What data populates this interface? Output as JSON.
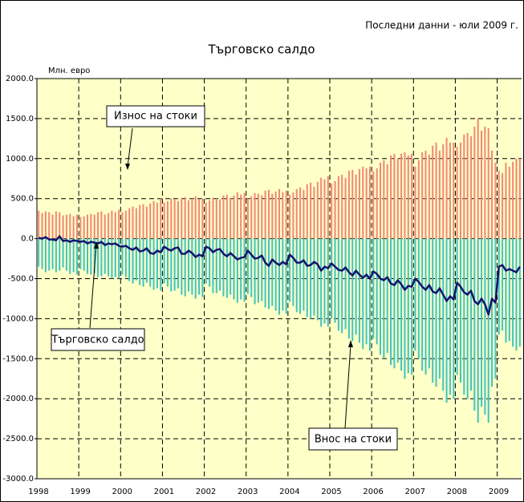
{
  "chart_data": {
    "type": "bar",
    "title": "Търговско салдо",
    "subtitle": "Последни данни - юли 2009 г.",
    "ylabel": "Млн. евро",
    "categories": [
      "1998",
      null,
      null,
      null,
      null,
      null,
      null,
      null,
      null,
      null,
      null,
      null,
      "1999",
      null,
      null,
      null,
      null,
      null,
      null,
      null,
      null,
      null,
      null,
      null,
      "2000",
      null,
      null,
      null,
      null,
      null,
      null,
      null,
      null,
      null,
      null,
      null,
      "2001",
      null,
      null,
      null,
      null,
      null,
      null,
      null,
      null,
      null,
      null,
      null,
      "2002",
      null,
      null,
      null,
      null,
      null,
      null,
      null,
      null,
      null,
      null,
      null,
      "2003",
      null,
      null,
      null,
      null,
      null,
      null,
      null,
      null,
      null,
      null,
      null,
      "2004",
      null,
      null,
      null,
      null,
      null,
      null,
      null,
      null,
      null,
      null,
      null,
      "2005",
      null,
      null,
      null,
      null,
      null,
      null,
      null,
      null,
      null,
      null,
      null,
      "2006",
      null,
      null,
      null,
      null,
      null,
      null,
      null,
      null,
      null,
      null,
      null,
      "2007",
      null,
      null,
      null,
      null,
      null,
      null,
      null,
      null,
      null,
      null,
      null,
      "2008",
      null,
      null,
      null,
      null,
      null,
      null,
      null,
      null,
      null,
      null,
      null,
      "2009",
      null,
      null,
      null,
      null,
      null,
      null
    ],
    "series": [
      {
        "name": "Износ на стоки",
        "type": "bar",
        "color": "#f08878",
        "values": [
          350,
          320,
          340,
          330,
          300,
          340,
          330,
          290,
          300,
          310,
          280,
          300,
          270,
          280,
          300,
          310,
          300,
          330,
          340,
          300,
          320,
          350,
          330,
          360,
          330,
          350,
          380,
          400,
          380,
          420,
          430,
          400,
          440,
          470,
          450,
          500,
          450,
          470,
          500,
          490,
          470,
          510,
          520,
          480,
          500,
          530,
          490,
          500,
          450,
          480,
          510,
          500,
          490,
          540,
          550,
          510,
          540,
          580,
          550,
          570,
          500,
          530,
          570,
          560,
          540,
          600,
          610,
          560,
          590,
          620,
          580,
          600,
          550,
          580,
          620,
          640,
          610,
          680,
          700,
          650,
          710,
          760,
          740,
          780,
          690,
          720,
          780,
          800,
          760,
          850,
          860,
          800,
          870,
          900,
          880,
          900,
          840,
          880,
          950,
          980,
          930,
          1040,
          1060,
          1000,
          1060,
          1080,
          1040,
          1060,
          900,
          980,
          1080,
          1100,
          1050,
          1160,
          1200,
          1100,
          1180,
          1260,
          1200,
          1200,
          1150,
          1200,
          1300,
          1320,
          1280,
          1400,
          1500,
          1350,
          1400,
          1380,
          1100,
          950,
          850,
          820,
          950,
          900,
          960,
          1000,
          1000
        ]
      },
      {
        "name": "Внос на стоки",
        "type": "bar",
        "color": "#40c4c0",
        "values": [
          -350,
          -380,
          -420,
          -400,
          -380,
          -420,
          -400,
          -360,
          -400,
          -440,
          -420,
          -450,
          -380,
          -400,
          -440,
          -450,
          -430,
          -480,
          -470,
          -440,
          -470,
          -500,
          -480,
          -500,
          -450,
          -480,
          -530,
          -560,
          -520,
          -580,
          -600,
          -550,
          -600,
          -640,
          -620,
          -650,
          -560,
          -600,
          -660,
          -650,
          -620,
          -700,
          -720,
          -660,
          -700,
          -750,
          -700,
          -730,
          -560,
          -600,
          -680,
          -680,
          -650,
          -720,
          -740,
          -700,
          -760,
          -800,
          -760,
          -790,
          -690,
          -730,
          -820,
          -800,
          -780,
          -860,
          -880,
          -840,
          -900,
          -950,
          -900,
          -940,
          -790,
          -840,
          -920,
          -940,
          -900,
          -980,
          -1000,
          -960,
          -1020,
          -1100,
          -1060,
          -1100,
          -1000,
          -1050,
          -1150,
          -1180,
          -1130,
          -1250,
          -1280,
          -1200,
          -1300,
          -1380,
          -1320,
          -1400,
          -1250,
          -1320,
          -1450,
          -1500,
          -1430,
          -1580,
          -1620,
          -1550,
          -1650,
          -1750,
          -1680,
          -1700,
          -1400,
          -1500,
          -1650,
          -1700,
          -1620,
          -1800,
          -1850,
          -1750,
          -1900,
          -2050,
          -1950,
          -2000,
          -1700,
          -1800,
          -1950,
          -2000,
          -1900,
          -2150,
          -2300,
          -2100,
          -2200,
          -2300,
          -1850,
          -1750,
          -1200,
          -1150,
          -1300,
          -1280,
          -1350,
          -1400,
          -1350
        ]
      },
      {
        "name": "Търговско салдо",
        "type": "line",
        "color": "#14146e",
        "values": [
          10,
          0,
          20,
          -10,
          -10,
          -20,
          30,
          -30,
          -20,
          -40,
          -20,
          -30,
          -40,
          -30,
          -60,
          -40,
          -50,
          -60,
          -40,
          -80,
          -60,
          -70,
          -60,
          -90,
          -100,
          -90,
          -120,
          -140,
          -110,
          -160,
          -150,
          -120,
          -180,
          -190,
          -150,
          -170,
          -100,
          -130,
          -150,
          -120,
          -110,
          -190,
          -190,
          -150,
          -180,
          -230,
          -200,
          -220,
          -100,
          -120,
          -170,
          -140,
          -130,
          -190,
          -220,
          -180,
          -220,
          -260,
          -240,
          -230,
          -150,
          -200,
          -250,
          -240,
          -210,
          -300,
          -340,
          -260,
          -300,
          -330,
          -290,
          -320,
          -200,
          -240,
          -300,
          -300,
          -270,
          -340,
          -330,
          -290,
          -320,
          -400,
          -350,
          -370,
          -310,
          -350,
          -390,
          -400,
          -360,
          -420,
          -460,
          -400,
          -450,
          -490,
          -450,
          -500,
          -410,
          -440,
          -500,
          -520,
          -480,
          -560,
          -580,
          -520,
          -570,
          -640,
          -590,
          -600,
          -500,
          -540,
          -600,
          -640,
          -580,
          -660,
          -680,
          -620,
          -700,
          -780,
          -720,
          -760,
          -550,
          -600,
          -670,
          -700,
          -650,
          -780,
          -820,
          -750,
          -820,
          -950,
          -750,
          -800,
          -350,
          -330,
          -400,
          -380,
          -400,
          -420,
          -350
        ]
      }
    ],
    "ylim": [
      -3000,
      2000
    ],
    "yticks": [
      {
        "value": -3000,
        "label": "-3000.0"
      },
      {
        "value": -2500,
        "label": "-2500.0"
      },
      {
        "value": -2000,
        "label": "-2000.0"
      },
      {
        "value": -1500,
        "label": "-1500.0"
      },
      {
        "value": -1000,
        "label": "-1000.0"
      },
      {
        "value": -500,
        "label": "-500.0"
      },
      {
        "value": 0,
        "label": "0.0"
      },
      {
        "value": 500,
        "label": "500.0"
      },
      {
        "value": 1000,
        "label": "1000.0"
      },
      {
        "value": 1500,
        "label": "1500.0"
      },
      {
        "value": 2000,
        "label": "2000.0"
      }
    ],
    "grid": true
  }
}
